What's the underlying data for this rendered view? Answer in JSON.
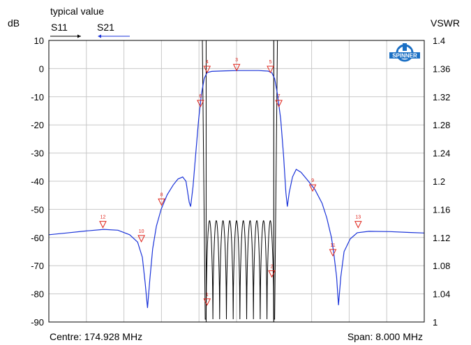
{
  "header": {
    "typical_value": "typical value",
    "left_unit": "dB",
    "right_unit": "VSWR",
    "legend_s11": "S11",
    "legend_s21": "S21",
    "logo_text": "SPINNER"
  },
  "footer": {
    "centre": "Centre: 174.928 MHz",
    "span": "Span: 8.000 MHz"
  },
  "colors": {
    "s11": "#000000",
    "s21": "#1a33d9",
    "marker": "#e0241b",
    "grid": "#c8c8c8",
    "logo": "#1a6fc4"
  },
  "chart_data": {
    "type": "line",
    "x_axis": {
      "centre_mhz": 174.928,
      "span_mhz": 8.0,
      "range_mhz": [
        170.928,
        178.928
      ]
    },
    "y_left": {
      "label": "dB",
      "range": [
        -90,
        10
      ],
      "ticks": [
        "10",
        "0",
        "-10",
        "-20",
        "-30",
        "-40",
        "-50",
        "-60",
        "-70",
        "-80",
        "-90"
      ]
    },
    "y_right": {
      "label": "VSWR",
      "range": [
        1.0,
        1.4
      ],
      "ticks": [
        "1.4",
        "1.36",
        "1.32",
        "1.28",
        "1.24",
        "1.2",
        "1.16",
        "1.12",
        "1.08",
        "1.04",
        "1"
      ]
    },
    "grid": true,
    "series": [
      {
        "name": "S21",
        "axis": "left",
        "points": [
          [
            170.928,
            -59.0
          ],
          [
            171.3,
            -58.4
          ],
          [
            171.7,
            -57.7
          ],
          [
            172.1,
            -57.1
          ],
          [
            172.4,
            -57.4
          ],
          [
            172.65,
            -59.0
          ],
          [
            172.82,
            -61.6
          ],
          [
            172.92,
            -67.0
          ],
          [
            172.98,
            -76.0
          ],
          [
            173.03,
            -85.0
          ],
          [
            173.08,
            -75.0
          ],
          [
            173.14,
            -64.0
          ],
          [
            173.22,
            -56.0
          ],
          [
            173.32,
            -50.0
          ],
          [
            173.45,
            -44.8
          ],
          [
            173.58,
            -41.3
          ],
          [
            173.68,
            -39.2
          ],
          [
            173.78,
            -38.5
          ],
          [
            173.85,
            -40.0
          ],
          [
            173.92,
            -47.5
          ],
          [
            173.95,
            -49.0
          ],
          [
            174.0,
            -42.0
          ],
          [
            174.06,
            -30.0
          ],
          [
            174.12,
            -18.0
          ],
          [
            174.18,
            -9.0
          ],
          [
            174.24,
            -3.5
          ],
          [
            174.3,
            -1.4
          ],
          [
            174.4,
            -1.0
          ],
          [
            174.7,
            -0.8
          ],
          [
            175.0,
            -0.7
          ],
          [
            175.4,
            -0.7
          ],
          [
            175.6,
            -0.9
          ],
          [
            175.68,
            -1.5
          ],
          [
            175.74,
            -3.6
          ],
          [
            175.8,
            -9.0
          ],
          [
            175.87,
            -18.0
          ],
          [
            175.93,
            -31.0
          ],
          [
            175.98,
            -44.0
          ],
          [
            176.01,
            -49.0
          ],
          [
            176.05,
            -44.0
          ],
          [
            176.12,
            -38.5
          ],
          [
            176.2,
            -35.8
          ],
          [
            176.3,
            -36.8
          ],
          [
            176.45,
            -39.8
          ],
          [
            176.6,
            -43.0
          ],
          [
            176.75,
            -47.8
          ],
          [
            176.85,
            -53.0
          ],
          [
            176.95,
            -60.0
          ],
          [
            177.0,
            -65.5
          ],
          [
            177.06,
            -74.0
          ],
          [
            177.1,
            -84.0
          ],
          [
            177.15,
            -74.0
          ],
          [
            177.22,
            -65.0
          ],
          [
            177.35,
            -60.5
          ],
          [
            177.5,
            -58.3
          ],
          [
            177.75,
            -57.8
          ],
          [
            178.2,
            -57.9
          ],
          [
            178.6,
            -58.2
          ],
          [
            178.928,
            -58.4
          ]
        ]
      },
      {
        "name": "S11",
        "axis": "left",
        "passband_mhz": [
          174.28,
          175.72
        ],
        "envelope_db": [
          -54,
          -89
        ],
        "ripple_lobes": 10,
        "skirt_edges_mhz": [
          174.2,
          175.8
        ]
      }
    ],
    "markers": [
      {
        "label": "1",
        "x": 174.3,
        "y": -84.0
      },
      {
        "label": "2",
        "x": 175.68,
        "y": -74.0
      },
      {
        "label": "3",
        "x": 174.93,
        "y": -0.7
      },
      {
        "label": "4",
        "x": 174.3,
        "y": -1.4
      },
      {
        "label": "5",
        "x": 175.65,
        "y": -1.4
      },
      {
        "label": "6",
        "x": 174.16,
        "y": -13.5
      },
      {
        "label": "7",
        "x": 175.83,
        "y": -13.5
      },
      {
        "label": "8",
        "x": 173.33,
        "y": -48.5
      },
      {
        "label": "9",
        "x": 176.55,
        "y": -43.5
      },
      {
        "label": "10",
        "x": 172.9,
        "y": -61.5
      },
      {
        "label": "11",
        "x": 176.98,
        "y": -66.5
      },
      {
        "label": "12",
        "x": 172.08,
        "y": -56.5
      },
      {
        "label": "13",
        "x": 177.52,
        "y": -56.5
      }
    ]
  }
}
